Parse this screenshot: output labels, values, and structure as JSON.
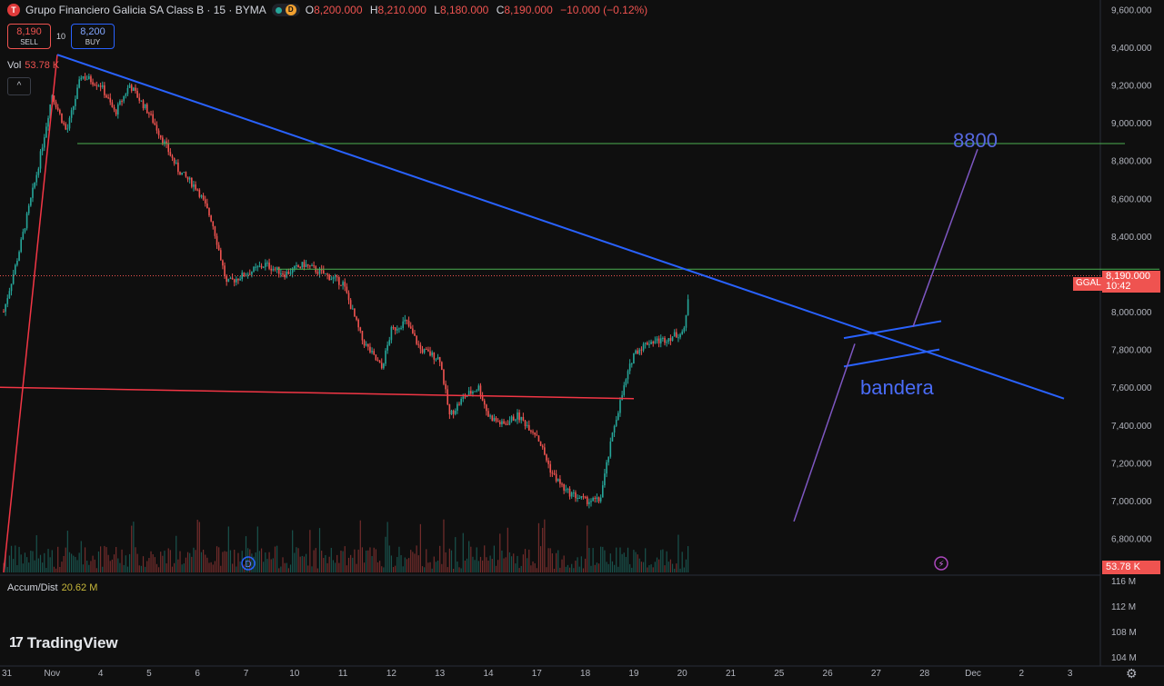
{
  "header": {
    "title": "Grupo Financiero Galicia SA Class B · 15 · BYMA",
    "logo_letter": "T",
    "status_letter": "D",
    "ohlc": [
      {
        "label": "O",
        "value": "8,200.000"
      },
      {
        "label": "H",
        "value": "8,210.000"
      },
      {
        "label": "L",
        "value": "8,180.000"
      },
      {
        "label": "C",
        "value": "8,190.000"
      }
    ],
    "change": "−10.000 (−0.12%)"
  },
  "trade": {
    "sell_price": "8,190",
    "sell_label": "SELL",
    "spread": "10",
    "buy_price": "8,200",
    "buy_label": "BUY"
  },
  "volume_pane": {
    "label": "Vol",
    "value": "53.78 K",
    "collapse_icon": "chevron-up-icon"
  },
  "accum_pane": {
    "label": "Accum/Dist",
    "value": "20.62 M"
  },
  "brand": {
    "name": "TradingView",
    "mark": "17"
  },
  "price_tag": {
    "symbol": "GGAL",
    "price": "8,190.000",
    "time": "10:42",
    "color": "#ef5350"
  },
  "volume_tag": "53.78 K",
  "colors": {
    "up": "#26a69a",
    "down": "#ef5350",
    "trendline": "#2962ff",
    "support": "#4caf50",
    "red_line": "#f23645",
    "purple": "#7e57c2"
  },
  "chart_data": {
    "type": "candlestick",
    "symbol": "GGAL",
    "interval": "15",
    "ylim": [
      6620,
      9640
    ],
    "y_ticks": [
      "9,600.000",
      "9,400.000",
      "9,200.000",
      "9,000.000",
      "8,800.000",
      "8,600.000",
      "8,400.000",
      "8,200.000",
      "8,000.000",
      "7,800.000",
      "7,600.000",
      "7,400.000",
      "7,200.000",
      "7,000.000",
      "6,800.000"
    ],
    "x_ticks": [
      "31",
      "Nov",
      "4",
      "5",
      "6",
      "7",
      "10",
      "11",
      "12",
      "13",
      "14",
      "17",
      "18",
      "19",
      "20",
      "21",
      "25",
      "26",
      "27",
      "28",
      "Dec",
      "2",
      "3"
    ],
    "accum_ticks": [
      "116 M",
      "112 M",
      "108 M",
      "104 M"
    ],
    "price_path": [
      [
        0,
        8000
      ],
      [
        0.3,
        8300
      ],
      [
        0.7,
        8750
      ],
      [
        1,
        9150
      ],
      [
        1.3,
        8950
      ],
      [
        1.6,
        9250
      ],
      [
        2,
        9200
      ],
      [
        2.3,
        9050
      ],
      [
        2.6,
        9200
      ],
      [
        3,
        9050
      ],
      [
        3.3,
        8900
      ],
      [
        3.6,
        8750
      ],
      [
        4,
        8650
      ],
      [
        4.3,
        8480
      ],
      [
        4.6,
        8150
      ],
      [
        5,
        8200
      ],
      [
        5.4,
        8250
      ],
      [
        5.8,
        8200
      ],
      [
        6.2,
        8250
      ],
      [
        6.6,
        8200
      ],
      [
        7,
        8150
      ],
      [
        7.4,
        7850
      ],
      [
        7.8,
        7700
      ],
      [
        8,
        7900
      ],
      [
        8.3,
        7950
      ],
      [
        8.6,
        7800
      ],
      [
        9,
        7750
      ],
      [
        9.2,
        7450
      ],
      [
        9.5,
        7550
      ],
      [
        9.8,
        7600
      ],
      [
        10,
        7450
      ],
      [
        10.3,
        7400
      ],
      [
        10.6,
        7450
      ],
      [
        11,
        7350
      ],
      [
        11.3,
        7150
      ],
      [
        11.6,
        7050
      ],
      [
        12,
        7000
      ],
      [
        12.3,
        7000
      ],
      [
        12.6,
        7400
      ],
      [
        12.8,
        7600
      ],
      [
        13,
        7780
      ],
      [
        13.3,
        7840
      ],
      [
        13.6,
        7850
      ],
      [
        13.9,
        7880
      ],
      [
        14.05,
        7900
      ],
      [
        14.15,
        8150
      ]
    ],
    "annotations": [
      {
        "type": "line",
        "label": "bandera"
      },
      {
        "type": "target",
        "label": "8800"
      }
    ],
    "last_price": 8190
  }
}
